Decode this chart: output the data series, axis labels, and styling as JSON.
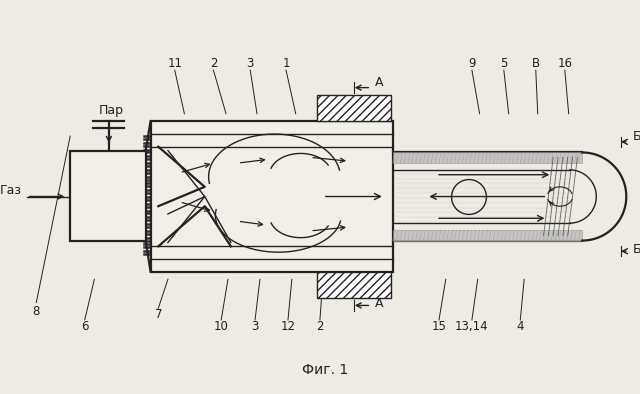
{
  "bg_color": "#eeebe4",
  "line_color": "#222222",
  "label_size": 8.5,
  "fig_title": "Фиг. 1",
  "par_label": "Пар",
  "gaz_label": "Газ"
}
